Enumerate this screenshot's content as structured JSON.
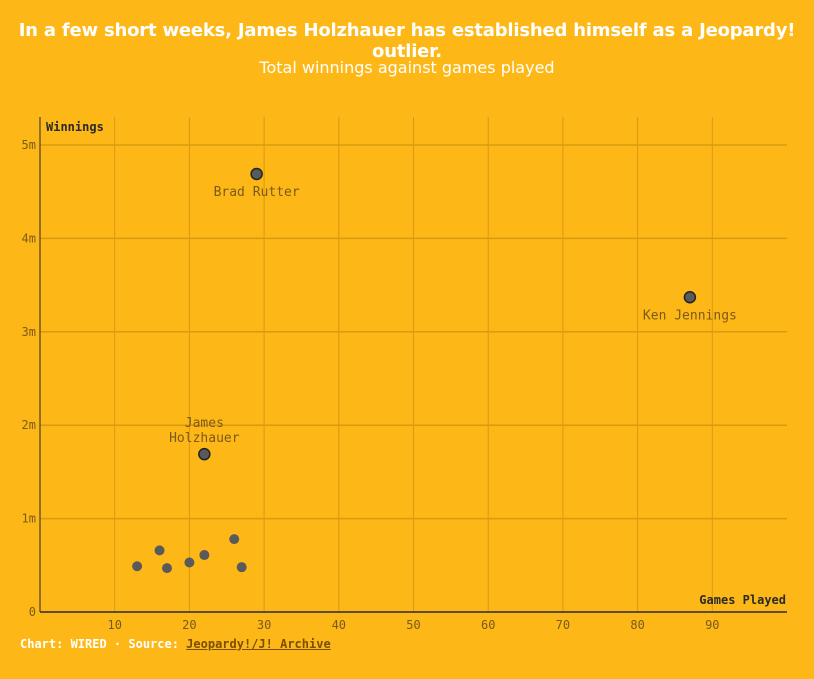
{
  "header": {
    "title": "In a few short weeks, James Holzhauer has established himself as a Jeopardy! outlier.",
    "subtitle": "Total winnings against games played"
  },
  "footer": {
    "credit": "Chart: WIRED · Source: ",
    "source_link": "Jeopardy!/J! Archive"
  },
  "colors": {
    "background": "#FDB817",
    "grid": "#D89A12",
    "axis": "#2a2a2a",
    "point_fill": "#5a5a5a",
    "point_stroke": "#222222",
    "label": "#7a5a1a"
  },
  "chart_data": {
    "type": "scatter",
    "xlabel": "Games Played",
    "ylabel": "Winnings",
    "xlim": [
      0,
      100
    ],
    "ylim": [
      0,
      5300000
    ],
    "x_ticks": [
      10,
      20,
      30,
      40,
      50,
      60,
      70,
      80,
      90
    ],
    "x_tick_labels": [
      "10",
      "20",
      "30",
      "40",
      "50",
      "60",
      "70",
      "80",
      "90"
    ],
    "y_ticks": [
      0,
      1000000,
      2000000,
      3000000,
      4000000,
      5000000
    ],
    "y_tick_labels": [
      "0",
      "1m",
      "2m",
      "3m",
      "4m",
      "5m"
    ],
    "grid": true,
    "points": [
      {
        "x": 29,
        "y": 4690000,
        "label": "Brad Rutter",
        "highlight": true
      },
      {
        "x": 87,
        "y": 3370000,
        "label": "Ken Jennings",
        "highlight": true
      },
      {
        "x": 22,
        "y": 1690000,
        "label": "James Holzhauer",
        "highlight": true
      },
      {
        "x": 13,
        "y": 490000
      },
      {
        "x": 16,
        "y": 660000
      },
      {
        "x": 17,
        "y": 470000
      },
      {
        "x": 20,
        "y": 530000
      },
      {
        "x": 22,
        "y": 610000
      },
      {
        "x": 26,
        "y": 780000
      },
      {
        "x": 27,
        "y": 480000
      }
    ]
  }
}
